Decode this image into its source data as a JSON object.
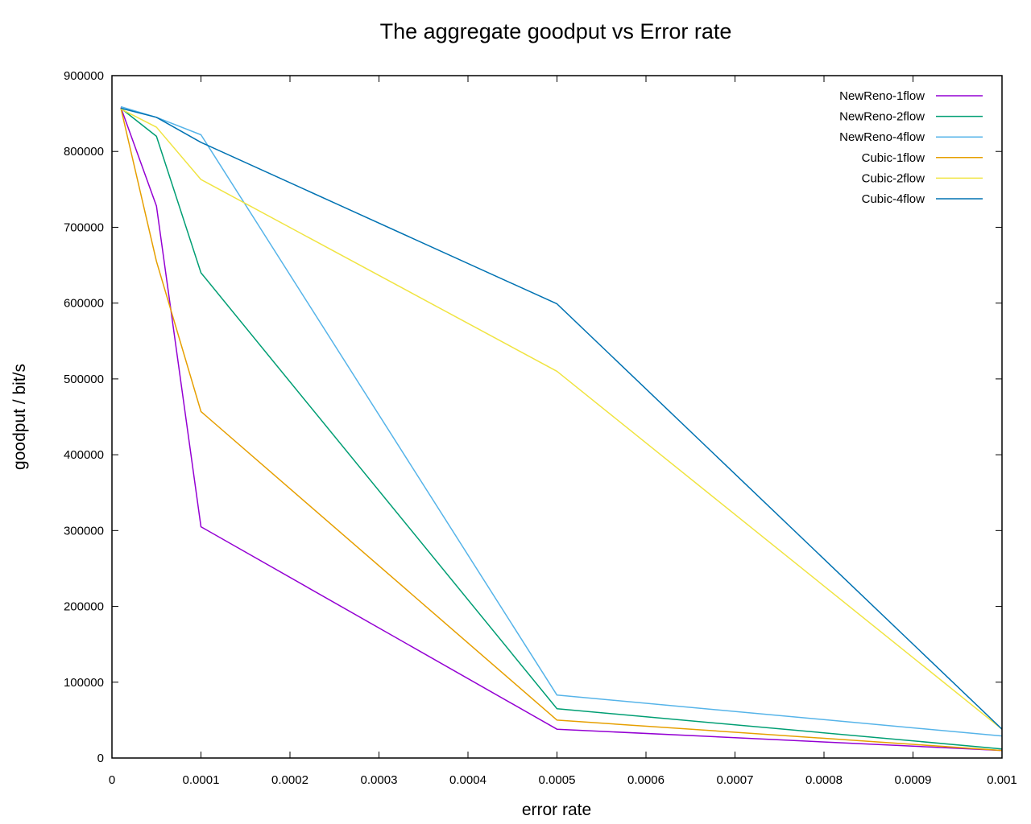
{
  "chart_data": {
    "type": "line",
    "title": "The aggregate goodput vs Error rate",
    "xlabel": "error rate",
    "ylabel": "goodput / bit/s",
    "xlim": [
      0,
      0.001
    ],
    "ylim": [
      0,
      900000
    ],
    "x_ticks": [
      {
        "value": 0,
        "label": "0"
      },
      {
        "value": 0.0001,
        "label": "0.0001"
      },
      {
        "value": 0.0002,
        "label": "0.0002"
      },
      {
        "value": 0.0003,
        "label": "0.0003"
      },
      {
        "value": 0.0004,
        "label": "0.0004"
      },
      {
        "value": 0.0005,
        "label": "0.0005"
      },
      {
        "value": 0.0006,
        "label": "0.0006"
      },
      {
        "value": 0.0007,
        "label": "0.0007"
      },
      {
        "value": 0.0008,
        "label": "0.0008"
      },
      {
        "value": 0.0009,
        "label": "0.0009"
      },
      {
        "value": 0.001,
        "label": "0.001"
      }
    ],
    "y_ticks": [
      {
        "value": 0,
        "label": "0"
      },
      {
        "value": 100000,
        "label": "100000"
      },
      {
        "value": 200000,
        "label": "200000"
      },
      {
        "value": 300000,
        "label": "300000"
      },
      {
        "value": 400000,
        "label": "400000"
      },
      {
        "value": 500000,
        "label": "500000"
      },
      {
        "value": 600000,
        "label": "600000"
      },
      {
        "value": 700000,
        "label": "700000"
      },
      {
        "value": 800000,
        "label": "800000"
      },
      {
        "value": 900000,
        "label": "900000"
      }
    ],
    "grid": false,
    "legend_position": "top-right",
    "x": [
      1e-05,
      5e-05,
      0.0001,
      0.0005,
      0.001
    ],
    "series": [
      {
        "name": "NewReno-1flow",
        "color": "#9400d3",
        "values": [
          858000,
          728000,
          305000,
          38000,
          10000
        ]
      },
      {
        "name": "NewReno-2flow",
        "color": "#009e73",
        "values": [
          857000,
          820000,
          640000,
          65000,
          12000
        ]
      },
      {
        "name": "NewReno-4flow",
        "color": "#56b4e9",
        "values": [
          859000,
          845000,
          822000,
          83000,
          29000
        ]
      },
      {
        "name": "Cubic-1flow",
        "color": "#e69f00",
        "values": [
          857000,
          655000,
          457000,
          50000,
          10000
        ]
      },
      {
        "name": "Cubic-2flow",
        "color": "#f0e442",
        "values": [
          856000,
          832000,
          763000,
          510000,
          38000
        ]
      },
      {
        "name": "Cubic-4flow",
        "color": "#0072b2",
        "values": [
          857000,
          845000,
          812000,
          599000,
          38000
        ]
      }
    ]
  }
}
